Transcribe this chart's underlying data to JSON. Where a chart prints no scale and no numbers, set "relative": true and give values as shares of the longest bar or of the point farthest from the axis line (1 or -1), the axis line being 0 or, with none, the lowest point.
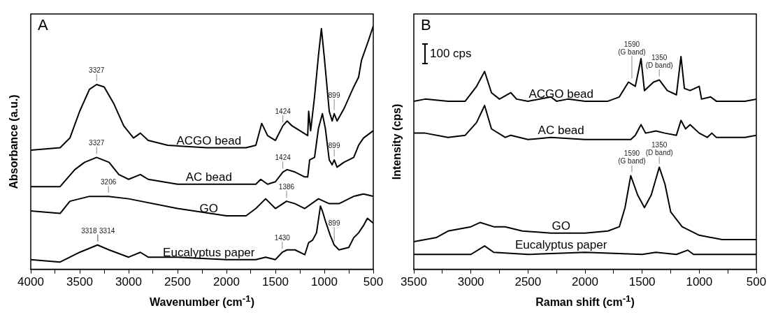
{
  "chart_data": [
    {
      "type": "line",
      "title": "A",
      "xlabel": "Wavenumber (cm$^{-1}$)",
      "ylabel": "Absorbance (a.u.)",
      "relative": true,
      "grid": false,
      "tick_labels": "x",
      "xlim": [
        4000,
        500
      ],
      "xticks": [
        4000,
        {
          "value": 3750,
          "label": null
        },
        3500,
        {
          "value": 3250,
          "label": null
        },
        3000,
        {
          "value": 2750,
          "label": null
        },
        2500,
        {
          "value": 2250,
          "label": null
        },
        2000,
        {
          "value": 1750,
          "label": null
        },
        1500,
        {
          "value": 1250,
          "label": null
        },
        1000,
        {
          "value": 750,
          "label": null
        },
        500
      ],
      "series": [
        {
          "name": "ACGO bead",
          "color": "#000000",
          "x": [
            4000,
            3700,
            3600,
            3500,
            3400,
            3327,
            3250,
            3150,
            3050,
            2950,
            2880,
            2800,
            2600,
            2200,
            1800,
            1700,
            1640,
            1580,
            1500,
            1424,
            1380,
            1330,
            1250,
            1170,
            1160,
            1140,
            1100,
            1060,
            1030,
            1000,
            950,
            920,
            899,
            870,
            800,
            700,
            650,
            620,
            550,
            500
          ],
          "values": [
            0.49,
            0.5,
            0.54,
            0.65,
            0.74,
            0.76,
            0.75,
            0.68,
            0.59,
            0.54,
            0.56,
            0.53,
            0.51,
            0.5,
            0.5,
            0.51,
            0.6,
            0.55,
            0.53,
            0.59,
            0.61,
            0.59,
            0.57,
            0.55,
            0.65,
            0.57,
            0.71,
            0.88,
            0.99,
            0.87,
            0.65,
            0.61,
            0.64,
            0.61,
            0.66,
            0.75,
            0.79,
            0.86,
            0.94,
            1.0
          ]
        },
        {
          "name": "AC bead",
          "color": "#000000",
          "x": [
            4000,
            3700,
            3550,
            3450,
            3327,
            3200,
            3100,
            3000,
            2880,
            2800,
            2500,
            2000,
            1700,
            1650,
            1580,
            1500,
            1424,
            1380,
            1300,
            1200,
            1170,
            1150,
            1100,
            1060,
            1020,
            990,
            950,
            920,
            899,
            870,
            800,
            700,
            650,
            600,
            500
          ],
          "values": [
            0.34,
            0.34,
            0.41,
            0.44,
            0.46,
            0.44,
            0.39,
            0.37,
            0.39,
            0.37,
            0.35,
            0.35,
            0.35,
            0.37,
            0.35,
            0.36,
            0.4,
            0.41,
            0.4,
            0.38,
            0.38,
            0.45,
            0.46,
            0.58,
            0.64,
            0.58,
            0.45,
            0.43,
            0.45,
            0.42,
            0.44,
            0.46,
            0.51,
            0.54,
            0.57
          ]
        },
        {
          "name": "GO",
          "color": "#000000",
          "x": [
            4000,
            3700,
            3600,
            3400,
            3206,
            3000,
            2500,
            2000,
            1800,
            1700,
            1600,
            1500,
            1386,
            1300,
            1200,
            1060,
            950,
            850,
            700,
            600,
            500
          ],
          "values": [
            0.24,
            0.23,
            0.28,
            0.3,
            0.3,
            0.29,
            0.25,
            0.22,
            0.22,
            0.25,
            0.29,
            0.25,
            0.28,
            0.27,
            0.25,
            0.29,
            0.27,
            0.27,
            0.3,
            0.31,
            0.3
          ]
        },
        {
          "name": "Eucalyptus paper",
          "color": "#000000",
          "x": [
            4000,
            3700,
            3500,
            3318,
            3200,
            3000,
            2880,
            2800,
            2500,
            2000,
            1700,
            1600,
            1500,
            1430,
            1380,
            1300,
            1200,
            1160,
            1120,
            1080,
            1040,
            1020,
            990,
            940,
            899,
            850,
            750,
            700,
            650,
            600,
            560,
            500
          ],
          "values": [
            0.04,
            0.03,
            0.07,
            0.1,
            0.08,
            0.05,
            0.07,
            0.05,
            0.05,
            0.04,
            0.04,
            0.05,
            0.04,
            0.07,
            0.08,
            0.08,
            0.06,
            0.11,
            0.12,
            0.15,
            0.26,
            0.24,
            0.2,
            0.14,
            0.1,
            0.08,
            0.09,
            0.13,
            0.15,
            0.18,
            0.21,
            0.19
          ]
        }
      ],
      "annotations": [
        {
          "text": "3327",
          "x": 3327,
          "y": 0.76
        },
        {
          "text": "1424",
          "x": 1424,
          "y": 0.59
        },
        {
          "text": "899",
          "x": 899,
          "y": 0.64
        },
        {
          "text": "3327",
          "x": 3327,
          "y": 0.46
        },
        {
          "text": "1424",
          "x": 1424,
          "y": 0.4
        },
        {
          "text": "899",
          "x": 899,
          "y": 0.45
        },
        {
          "text": "3206",
          "x": 3206,
          "y": 0.3
        },
        {
          "text": "1386",
          "x": 1386,
          "y": 0.28
        },
        {
          "text": "3318",
          "x": 3318,
          "y": 0.1
        },
        {
          "text": "3314",
          "x": 3314,
          "y": 0.1
        },
        {
          "text": "1430",
          "x": 1430,
          "y": 0.07
        },
        {
          "text": "899",
          "x": 899,
          "y": 0.1
        }
      ]
    },
    {
      "type": "line",
      "title": "B",
      "xlabel": "Raman shift (cm$^{-1}$)",
      "ylabel": "Intensity (cps)",
      "relative": true,
      "grid": false,
      "tick_labels": "x",
      "xlim": [
        3500,
        500
      ],
      "xticks": [
        3500,
        {
          "value": 3250,
          "label": null
        },
        3000,
        {
          "value": 2750,
          "label": null
        },
        2500,
        {
          "value": 2250,
          "label": null
        },
        2000,
        {
          "value": 1750,
          "label": null
        },
        1500,
        {
          "value": 1250,
          "label": null
        },
        1000,
        {
          "value": 750,
          "label": null
        },
        500
      ],
      "series": [
        {
          "name": "ACGO bead",
          "color": "#000000",
          "x": [
            3500,
            3400,
            3200,
            3050,
            2950,
            2880,
            2820,
            2750,
            2650,
            2600,
            2500,
            2300,
            2250,
            2150,
            2000,
            1800,
            1700,
            1620,
            1560,
            1510,
            1480,
            1400,
            1350,
            1280,
            1200,
            1160,
            1130,
            1080,
            1000,
            980,
            900,
            850,
            600,
            500
          ],
          "values": [
            0.79,
            0.8,
            0.79,
            0.79,
            0.86,
            0.93,
            0.83,
            0.8,
            0.83,
            0.8,
            0.79,
            0.81,
            0.79,
            0.8,
            0.79,
            0.79,
            0.81,
            0.88,
            0.86,
            0.99,
            0.84,
            0.88,
            0.89,
            0.84,
            0.82,
            1.0,
            0.85,
            0.84,
            0.86,
            0.8,
            0.81,
            0.79,
            0.79,
            0.8
          ]
        },
        {
          "name": "AC bead",
          "color": "#000000",
          "x": [
            3500,
            3400,
            3200,
            3050,
            2950,
            2880,
            2820,
            2700,
            2650,
            2500,
            2300,
            2000,
            1600,
            1560,
            1510,
            1470,
            1380,
            1300,
            1200,
            1160,
            1120,
            1080,
            1000,
            930,
            890,
            850,
            600,
            500
          ],
          "values": [
            0.64,
            0.64,
            0.62,
            0.63,
            0.69,
            0.77,
            0.66,
            0.62,
            0.63,
            0.61,
            0.62,
            0.61,
            0.61,
            0.63,
            0.68,
            0.64,
            0.65,
            0.64,
            0.63,
            0.7,
            0.66,
            0.68,
            0.64,
            0.62,
            0.64,
            0.62,
            0.62,
            0.63
          ]
        },
        {
          "name": "GO",
          "color": "#000000",
          "x": [
            3500,
            3300,
            3200,
            3000,
            2920,
            2800,
            2700,
            2550,
            2300,
            2000,
            1800,
            1700,
            1650,
            1600,
            1540,
            1480,
            1420,
            1350,
            1300,
            1250,
            1150,
            1000,
            800,
            500
          ],
          "values": [
            0.13,
            0.15,
            0.18,
            0.2,
            0.22,
            0.2,
            0.2,
            0.18,
            0.17,
            0.17,
            0.18,
            0.2,
            0.29,
            0.44,
            0.35,
            0.29,
            0.35,
            0.48,
            0.4,
            0.27,
            0.2,
            0.16,
            0.14,
            0.14
          ]
        },
        {
          "name": "Eucalyptus paper",
          "color": "#000000",
          "x": [
            3500,
            3000,
            2880,
            2800,
            2500,
            2000,
            1500,
            1380,
            1200,
            1100,
            1050,
            500
          ],
          "values": [
            0.07,
            0.07,
            0.11,
            0.08,
            0.07,
            0.08,
            0.07,
            0.08,
            0.07,
            0.09,
            0.07,
            0.07
          ]
        }
      ],
      "annotations": [
        "100 cps",
        {
          "text": "1590\n(G band)",
          "x": 1590,
          "y": 0.88
        },
        {
          "text": "1350\n(D band)",
          "x": 1350,
          "y": 0.89
        },
        {
          "text": "1590\n(G band)",
          "x": 1590,
          "y": 0.44
        },
        {
          "text": "1350\n(D band)",
          "x": 1350,
          "y": 0.48
        }
      ]
    }
  ]
}
